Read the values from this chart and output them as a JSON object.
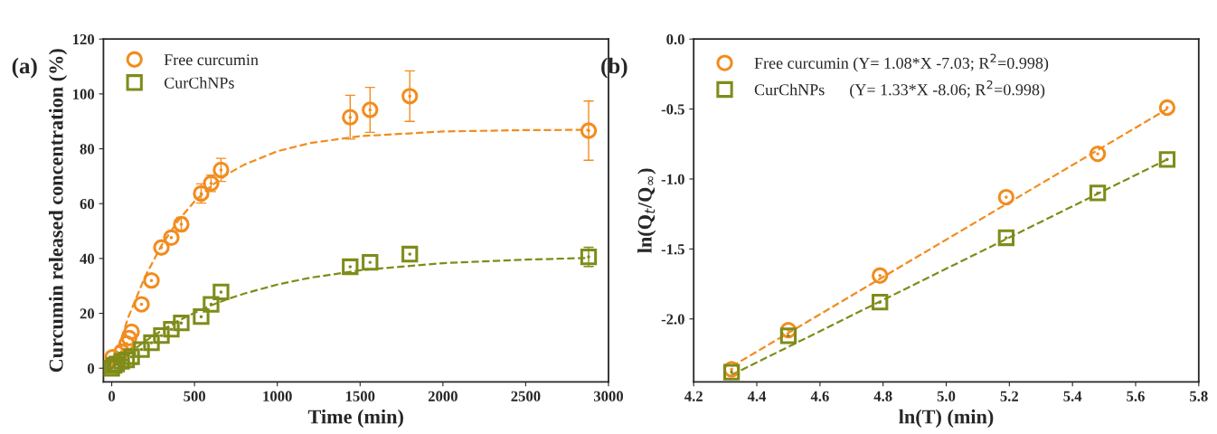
{
  "chart_data": [
    {
      "type": "scatter",
      "xlabel": "Time (min)",
      "ylabel": "Curcumin released concentration (%)",
      "annotations": [
        "(a)"
      ],
      "legend": "top left",
      "grid": false,
      "xlim": [
        -50,
        3000
      ],
      "xticks": [
        0,
        500,
        1000,
        1500,
        2000,
        2500,
        3000
      ],
      "ylim": [
        -5,
        120
      ],
      "yticks": [
        0,
        20,
        40,
        60,
        80,
        100,
        120
      ],
      "series": [
        {
          "name": "Free curcumin",
          "color": "#f28c1e",
          "marker": "circle",
          "x": [
            5,
            15,
            30,
            60,
            90,
            105,
            120,
            180,
            240,
            300,
            360,
            420,
            540,
            600,
            660,
            1440,
            1560,
            1800,
            2880
          ],
          "values": [
            4,
            null,
            null,
            6,
            9,
            11,
            13.3,
            23.3,
            32,
            44,
            47.6,
            52.5,
            63.7,
            67.4,
            72.3,
            91.5,
            94.2,
            99.2,
            86.6
          ],
          "errors": [
            null,
            null,
            null,
            null,
            null,
            null,
            null,
            null,
            null,
            null,
            null,
            2.5,
            3.5,
            3,
            4.2,
            8,
            8.2,
            9.2,
            10.8
          ]
        },
        {
          "name": "CurChNPs",
          "color": "#7f8c1a",
          "marker": "square",
          "x": [
            0,
            15,
            30,
            60,
            90,
            120,
            180,
            240,
            300,
            360,
            420,
            540,
            600,
            660,
            1440,
            1560,
            1800,
            2880
          ],
          "values": [
            0,
            1,
            1.5,
            2.5,
            3,
            4.2,
            6.8,
            9.3,
            11.9,
            14.2,
            16.5,
            18.8,
            23.3,
            27.8,
            37,
            38.6,
            41.6,
            40.6
          ],
          "errors": [
            null,
            null,
            null,
            null,
            null,
            null,
            null,
            null,
            null,
            null,
            null,
            null,
            null,
            null,
            null,
            null,
            null,
            3.5
          ]
        },
        {
          "type": "line",
          "color": "#f28c1e",
          "line_style": "dashed",
          "x": [
            0,
            100,
            200,
            300,
            400,
            500,
            600,
            700,
            800,
            1000,
            1200,
            1500,
            2000,
            2500,
            2880
          ],
          "values": [
            0,
            18.6,
            33.2,
            44.7,
            53.7,
            60.8,
            66.4,
            70.8,
            74.2,
            79.1,
            82.1,
            84.6,
            86.3,
            86.8,
            86.9
          ]
        },
        {
          "type": "line",
          "color": "#7f8c1a",
          "line_style": "dashed",
          "x": [
            0,
            100,
            200,
            300,
            400,
            500,
            600,
            700,
            800,
            1000,
            1200,
            1500,
            2000,
            2500,
            2880
          ],
          "values": [
            0,
            5.2,
            9.8,
            13.7,
            17.2,
            20.2,
            22.9,
            25.2,
            27.2,
            30.5,
            33.0,
            35.7,
            38.3,
            39.6,
            40.2
          ]
        }
      ]
    },
    {
      "type": "scatter",
      "xlabel": "ln(T) (min)",
      "ylabel": "ln(Q$_{t}$/Q$_{∞}$)",
      "annotations": [
        "(b)"
      ],
      "legend": "top left",
      "grid": false,
      "xlim": [
        4.2,
        5.8
      ],
      "xticks": [
        {
          "value": 4.2,
          "label": "4.2"
        },
        {
          "value": 4.4,
          "label": "4.4"
        },
        {
          "value": 4.6,
          "label": "4.6"
        },
        {
          "value": 4.8,
          "label": "4.8"
        },
        {
          "value": 5.0,
          "label": "5.0"
        },
        {
          "value": 5.2,
          "label": "5.2"
        },
        {
          "value": 5.4,
          "label": "5.4"
        },
        {
          "value": 5.6,
          "label": "5.6"
        },
        {
          "value": 5.8,
          "label": "5.8"
        }
      ],
      "ylim": [
        -2.45,
        0
      ],
      "yticks": [
        {
          "value": -2.0,
          "label": "-2.0"
        },
        {
          "value": -1.5,
          "label": "-1.5"
        },
        {
          "value": -1.0,
          "label": "-1.0"
        },
        {
          "value": -0.5,
          "label": "-0.5"
        },
        {
          "value": 0.0,
          "label": "0.0"
        }
      ],
      "series": [
        {
          "name": "Free curcumin (Y= 1.08*X -7.03; R$^{2}$=0.998)",
          "color": "#f28c1e",
          "marker": "circle",
          "x": [
            4.32,
            4.5,
            4.79,
            5.19,
            5.48,
            5.7
          ],
          "values": [
            -2.36,
            -2.08,
            -1.69,
            -1.13,
            -0.82,
            -0.49
          ]
        },
        {
          "name": "CurChNPs      (Y= 1.33*X -8.06; R$^{2}$=0.998)",
          "color": "#7f8c1a",
          "marker": "square",
          "x": [
            4.32,
            4.5,
            4.79,
            5.19,
            5.48,
            5.7
          ],
          "values": [
            -2.38,
            -2.12,
            -1.88,
            -1.42,
            -1.1,
            -0.86
          ]
        },
        {
          "type": "line",
          "color": "#f28c1e",
          "line_style": "dashed",
          "x": [
            4.32,
            5.7
          ],
          "values": [
            -2.34,
            -0.5
          ]
        },
        {
          "type": "line",
          "color": "#7f8c1a",
          "line_style": "dashed",
          "x": [
            4.32,
            5.7
          ],
          "values": [
            -2.4,
            -0.86
          ]
        }
      ]
    }
  ]
}
